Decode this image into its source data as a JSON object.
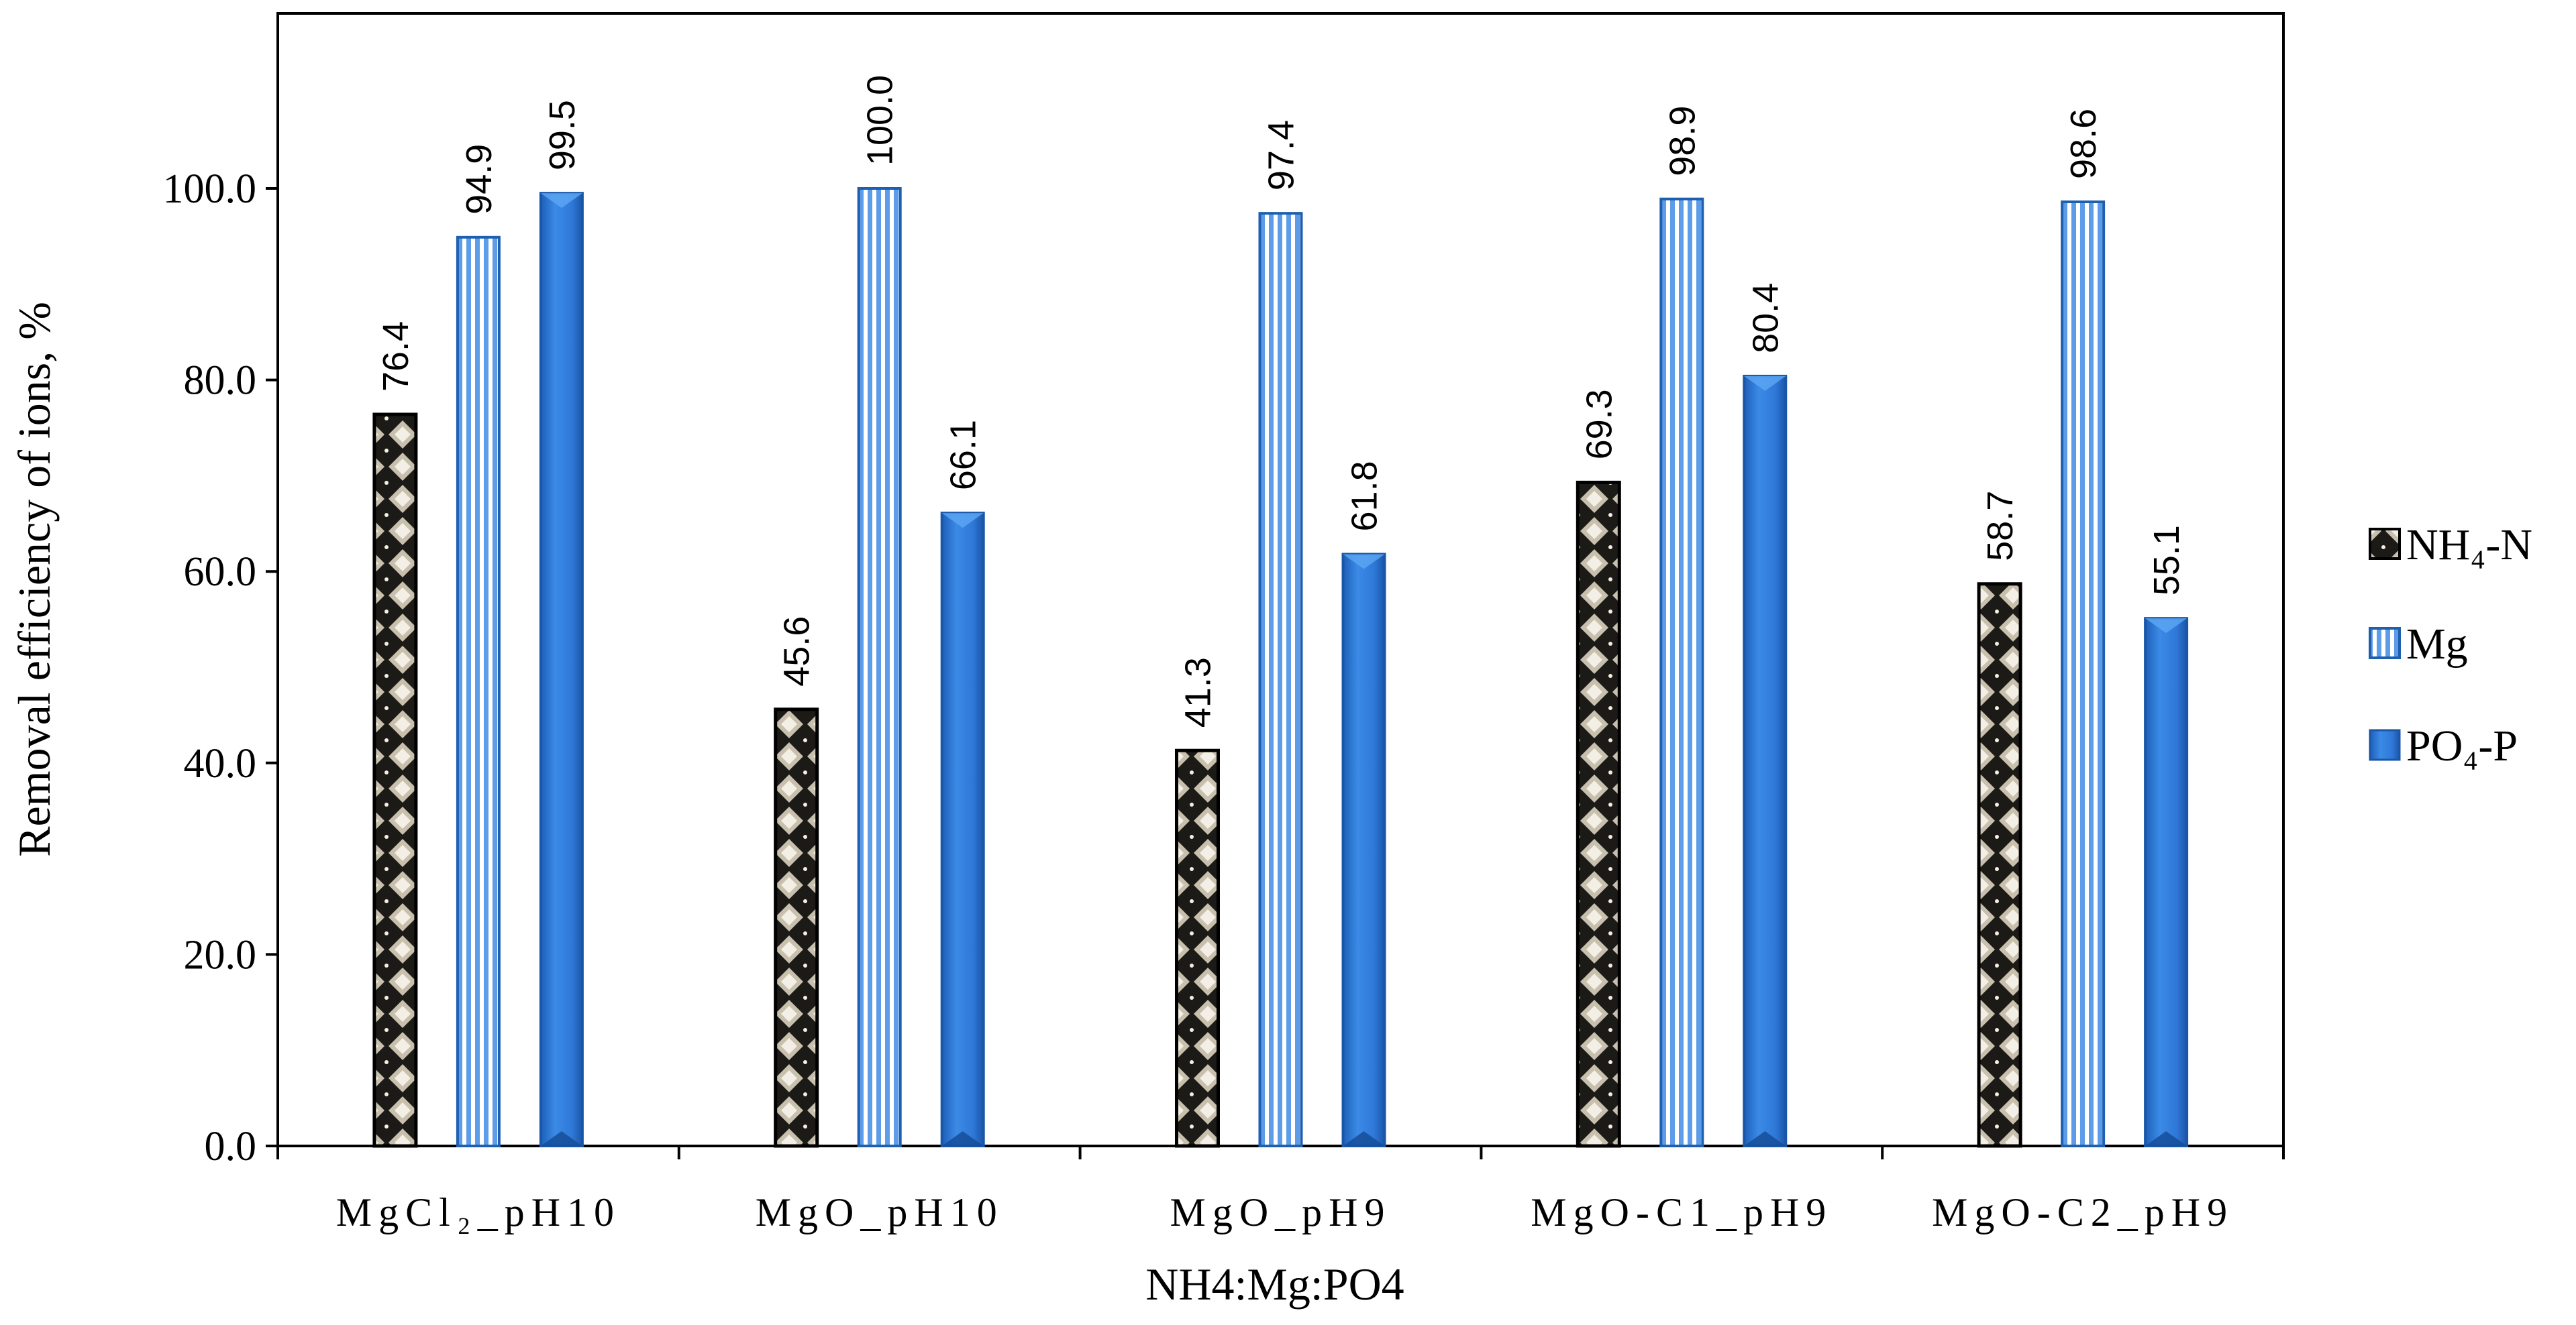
{
  "chart_data": {
    "type": "bar",
    "title": "",
    "xlabel": "NH4:Mg:PO4",
    "ylabel": "Removal efficiency of ions, %",
    "ylim": [
      0,
      115
    ],
    "yticks": [
      "0.0",
      "20.0",
      "40.0",
      "60.0",
      "80.0",
      "100.0"
    ],
    "categories": [
      "MgCl₂_pH10",
      "MgO_pH10",
      "MgO_pH9",
      "MgO-C1_pH9",
      "MgO-C2_pH9"
    ],
    "series": [
      {
        "name": "NH₄-N",
        "color": "#2a2620",
        "values": [
          76.4,
          45.6,
          41.3,
          69.3,
          58.7
        ],
        "labels": [
          "76.4",
          "45.6",
          "41.3",
          "69.3",
          "58.7"
        ]
      },
      {
        "name": "Mg",
        "color": "#4a8fe0",
        "values": [
          94.9,
          100.0,
          97.4,
          98.9,
          98.6
        ],
        "labels": [
          "94.9",
          "100.0",
          "97.4",
          "98.9",
          "98.6"
        ]
      },
      {
        "name": "PO₄-P",
        "color": "#2a72d4",
        "values": [
          99.5,
          66.1,
          61.8,
          80.4,
          55.1
        ],
        "labels": [
          "99.5",
          "66.1",
          "61.8",
          "80.4",
          "55.1"
        ]
      }
    ],
    "legend_position": "right",
    "grid": false
  }
}
